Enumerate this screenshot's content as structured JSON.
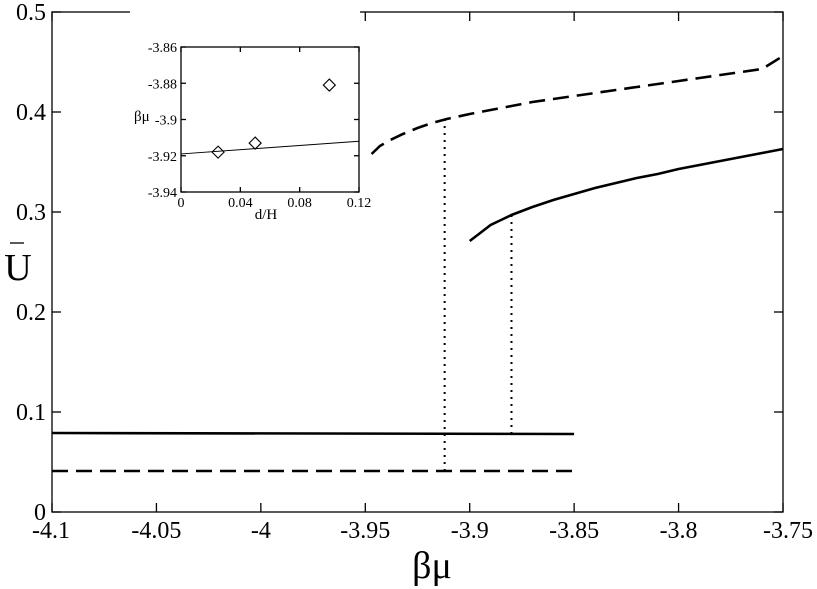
{
  "chart_data": [
    {
      "type": "line",
      "xlabel": "βμ",
      "ylabel": "U",
      "xlim": [
        -4.1,
        -3.75
      ],
      "ylim": [
        0,
        0.5
      ],
      "xticks": [
        "-4.1",
        "-4.05",
        "-4",
        "-3.95",
        "-3.9",
        "-3.85",
        "-3.8",
        "-3.75"
      ],
      "yticks": [
        "0",
        "0.1",
        "0.2",
        "0.3",
        "0.4",
        "0.5"
      ],
      "grid": false,
      "series": [
        {
          "style": "solid",
          "x": [
            -4.1,
            -3.85
          ],
          "y": [
            0.079,
            0.078
          ]
        },
        {
          "style": "dashed",
          "x": [
            -4.1,
            -3.85
          ],
          "y": [
            0.041,
            0.041
          ]
        },
        {
          "style": "solid",
          "x": [
            -3.9,
            -3.895,
            -3.89,
            -3.885,
            -3.88,
            -3.87,
            -3.86,
            -3.85,
            -3.84,
            -3.83,
            -3.82,
            -3.81,
            -3.8,
            -3.79,
            -3.78,
            -3.77,
            -3.76,
            -3.75
          ],
          "y": [
            0.271,
            0.279,
            0.287,
            0.292,
            0.297,
            0.305,
            0.312,
            0.318,
            0.324,
            0.329,
            0.334,
            0.338,
            0.343,
            0.347,
            0.351,
            0.355,
            0.359,
            0.363
          ]
        },
        {
          "style": "dashed",
          "x": [
            -3.947,
            -3.943,
            -3.938,
            -3.932,
            -3.925,
            -3.918,
            -3.911,
            -3.9,
            -3.89,
            -3.88,
            -3.87,
            -3.86,
            -3.85,
            -3.84,
            -3.83,
            -3.82,
            -3.81,
            -3.8,
            -3.79,
            -3.78,
            -3.77,
            -3.76,
            -3.75
          ],
          "y": [
            0.358,
            0.366,
            0.372,
            0.378,
            0.384,
            0.389,
            0.393,
            0.398,
            0.402,
            0.406,
            0.41,
            0.413,
            0.416,
            0.419,
            0.422,
            0.425,
            0.428,
            0.431,
            0.434,
            0.437,
            0.44,
            0.443,
            0.456
          ]
        }
      ],
      "vlines": [
        {
          "x": -3.912,
          "y": [
            0.041,
            0.397
          ]
        },
        {
          "x": -3.88,
          "y": [
            0.078,
            0.297
          ]
        }
      ]
    },
    {
      "type": "scatter",
      "inset": true,
      "xlabel": "d/H",
      "ylabel": "βμ",
      "xlim": [
        0,
        0.12
      ],
      "ylim": [
        -3.94,
        -3.86
      ],
      "xticks": [
        "0",
        "0.04",
        "0.08",
        "0.12"
      ],
      "yticks": [
        "-3.94",
        "-3.92",
        "-3.9",
        "-3.88",
        "-3.86"
      ],
      "points": {
        "marker": "diamond",
        "x": [
          0.025,
          0.05,
          0.1
        ],
        "y": [
          -3.918,
          -3.913,
          -3.881
        ]
      },
      "fit": {
        "x": [
          0,
          0.12
        ],
        "y": [
          -3.919,
          -3.912
        ]
      }
    }
  ]
}
